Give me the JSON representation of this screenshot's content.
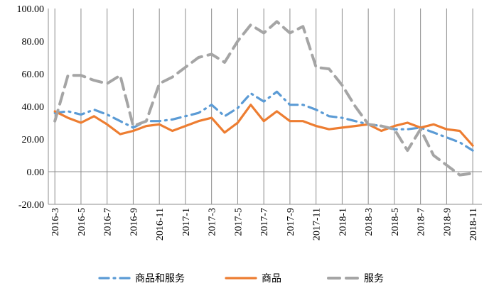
{
  "chart_data": {
    "type": "line",
    "title": "",
    "xlabel": "",
    "ylabel": "",
    "ylim": [
      -20,
      100
    ],
    "yticks": [
      -20,
      0,
      20,
      40,
      60,
      80,
      100
    ],
    "ytick_labels": [
      "-20.00",
      "0.00",
      "20.00",
      "40.00",
      "60.00",
      "80.00",
      "100.00"
    ],
    "x": [
      "2016-3",
      "2016-4",
      "2016-5",
      "2016-6",
      "2016-7",
      "2016-8",
      "2016-9",
      "2016-10",
      "2016-11",
      "2016-12",
      "2017-1",
      "2017-2",
      "2017-3",
      "2017-4",
      "2017-5",
      "2017-6",
      "2017-7",
      "2017-8",
      "2017-9",
      "2017-10",
      "2017-11",
      "2017-12",
      "2018-1",
      "2018-2",
      "2018-3",
      "2018-4",
      "2018-5",
      "2018-6",
      "2018-7",
      "2018-8",
      "2018-9",
      "2018-10",
      "2018-11"
    ],
    "x_tick_labels": [
      "2016-3",
      "2016-5",
      "2016-7",
      "2016-9",
      "2016-11",
      "2017-1",
      "2017-3",
      "2017-5",
      "2017-7",
      "2017-9",
      "2017-11",
      "2018-1",
      "2018-3",
      "2018-5",
      "2018-7",
      "2018-9",
      "2018-11"
    ],
    "grid": "vertical",
    "legend_position": "bottom",
    "series": [
      {
        "name": "商品和服务",
        "color": "#5b9bd5",
        "dash": "dash-dot",
        "values": [
          36,
          37,
          35,
          38,
          35,
          31,
          27,
          31,
          31,
          32,
          34,
          36,
          41,
          34,
          39,
          48,
          43,
          49,
          41,
          41,
          38,
          34,
          33,
          31,
          29,
          28,
          26,
          26,
          27,
          24,
          21,
          18,
          13
        ]
      },
      {
        "name": "商品",
        "color": "#ed7d31",
        "dash": "solid",
        "values": [
          37,
          33,
          30,
          34,
          29,
          23,
          25,
          28,
          29,
          25,
          28,
          31,
          33,
          24,
          30,
          41,
          31,
          37,
          31,
          31,
          28,
          26,
          27,
          28,
          29,
          25,
          28,
          30,
          27,
          29,
          26,
          25,
          16
        ]
      },
      {
        "name": "服务",
        "color": "#a5a5a5",
        "dash": "long-dash",
        "values": [
          31,
          59,
          59,
          56,
          54,
          59,
          28,
          31,
          54,
          58,
          64,
          70,
          72,
          67,
          80,
          90,
          85,
          92,
          85,
          89,
          64,
          63,
          53,
          40,
          29,
          28,
          26,
          13,
          26,
          10,
          4,
          -2,
          -1
        ]
      }
    ]
  }
}
